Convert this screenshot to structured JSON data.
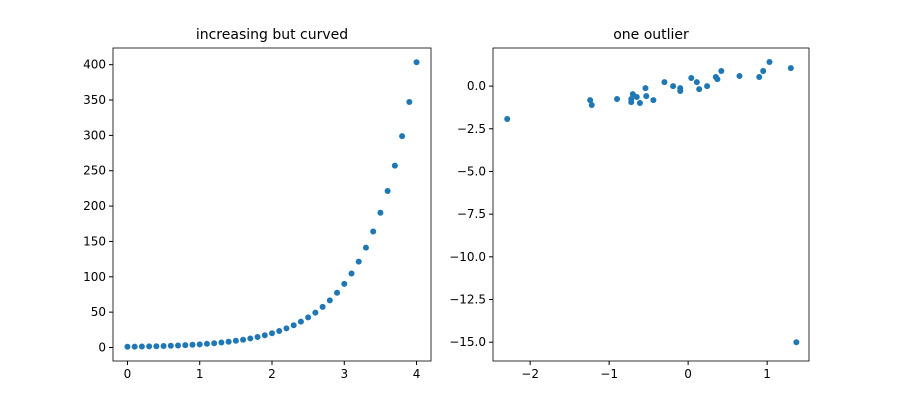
{
  "chart_data": [
    {
      "type": "scatter",
      "title": "increasing but curved",
      "color": "#1f77b4",
      "x": [
        0,
        0.1,
        0.2,
        0.3,
        0.4,
        0.5,
        0.6,
        0.7,
        0.8,
        0.9,
        1.0,
        1.1,
        1.2,
        1.3,
        1.4,
        1.5,
        1.6,
        1.7,
        1.8,
        1.9,
        2.0,
        2.1,
        2.2,
        2.3,
        2.4,
        2.5,
        2.6,
        2.7,
        2.8,
        2.9,
        3.0,
        3.1,
        3.2,
        3.3,
        3.4,
        3.5,
        3.6,
        3.7,
        3.8,
        3.9,
        4.0
      ],
      "values": [
        1.0,
        1.16,
        1.35,
        1.57,
        1.82,
        2.12,
        2.46,
        2.86,
        3.32,
        3.86,
        4.48,
        5.21,
        6.05,
        7.03,
        8.17,
        9.49,
        11.02,
        12.81,
        14.88,
        17.29,
        20.09,
        23.34,
        27.11,
        31.5,
        36.6,
        42.52,
        49.4,
        57.4,
        66.69,
        77.48,
        90.02,
        104.58,
        121.51,
        141.17,
        164.02,
        190.57,
        221.41,
        257.24,
        298.87,
        347.23,
        403.43
      ],
      "xlim": [
        -0.2,
        4.2
      ],
      "ylim": [
        -19.1,
        423.6
      ],
      "xticks": [
        0,
        1,
        2,
        3,
        4
      ],
      "yticks": [
        0,
        50,
        100,
        150,
        200,
        250,
        300,
        350,
        400
      ]
    },
    {
      "type": "scatter",
      "title": "one outlier",
      "color": "#1f77b4",
      "x": [
        -2.29,
        -1.24,
        -1.22,
        -0.9,
        -0.72,
        -0.7,
        -0.72,
        -0.65,
        -0.61,
        -0.54,
        -0.53,
        -0.44,
        -0.3,
        -0.19,
        -0.1,
        -0.1,
        0.04,
        0.11,
        0.14,
        0.24,
        0.35,
        0.37,
        0.42,
        0.65,
        0.9,
        0.95,
        1.03,
        1.3,
        1.37
      ],
      "values": [
        -1.93,
        -0.82,
        -1.11,
        -0.76,
        -0.76,
        -0.47,
        -0.94,
        -0.64,
        -0.99,
        -0.12,
        -0.59,
        -0.82,
        0.23,
        0,
        -0.12,
        -0.29,
        0.47,
        0.23,
        -0.18,
        0,
        0.53,
        0.41,
        0.88,
        0.59,
        0.53,
        0.88,
        1.41,
        1.05,
        -15.0
      ],
      "xlim": [
        -2.47,
        1.53
      ],
      "ylim": [
        -16.1,
        2.23
      ],
      "xticks": [
        {
          "value": -2,
          "label": "−2"
        },
        {
          "value": -1,
          "label": "−1"
        },
        0,
        1
      ],
      "yticks": [
        {
          "value": 0,
          "label": "0.0"
        },
        {
          "value": -2.5,
          "label": "−2.5"
        },
        {
          "value": -5,
          "label": "−5.0"
        },
        {
          "value": -7.5,
          "label": "−7.5"
        },
        {
          "value": -10,
          "label": "−10.0"
        },
        {
          "value": -12.5,
          "label": "−12.5"
        },
        {
          "value": -15,
          "label": "−15.0"
        }
      ]
    }
  ]
}
